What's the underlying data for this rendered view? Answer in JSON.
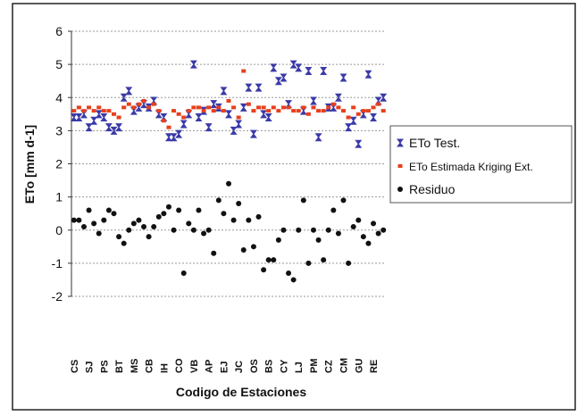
{
  "chart_data": {
    "type": "scatter",
    "x_label": "Codigo de Estaciones",
    "y_label": "ETo [mm d-1]",
    "categories": [
      "CS",
      null,
      null,
      "SJ",
      null,
      null,
      "PS",
      null,
      null,
      "BT",
      null,
      null,
      "MS",
      null,
      null,
      "CB",
      null,
      null,
      "IH",
      null,
      null,
      "CO",
      null,
      null,
      "VB",
      null,
      null,
      "AP",
      null,
      null,
      "EJ",
      null,
      null,
      "JC",
      null,
      null,
      "OS",
      null,
      null,
      "BS",
      null,
      null,
      "CY",
      null,
      null,
      "LJ",
      null,
      null,
      "PM",
      null,
      null,
      "CZ",
      null,
      null,
      "CM",
      null,
      null,
      "GU",
      null,
      null,
      "RE",
      null,
      null
    ],
    "series": [
      {
        "name": "ETo Test.",
        "color": "#3a3aa8",
        "marker": "hourglass",
        "values": [
          3.4,
          3.4,
          3.5,
          3.1,
          3.3,
          3.5,
          3.4,
          3.1,
          3.0,
          3.1,
          4.0,
          4.2,
          3.6,
          3.7,
          3.8,
          3.7,
          3.9,
          3.5,
          3.4,
          2.8,
          2.8,
          2.9,
          3.2,
          3.5,
          5.0,
          3.4,
          3.6,
          3.1,
          3.8,
          3.7,
          4.2,
          3.5,
          3.0,
          3.2,
          3.7,
          4.3,
          2.9,
          4.3,
          3.5,
          3.4,
          4.9,
          4.5,
          4.6,
          3.8,
          5.0,
          4.9,
          3.6,
          4.8,
          3.9,
          2.8,
          4.8,
          3.7,
          3.7,
          4.0,
          4.6,
          3.1,
          3.3,
          2.6,
          3.5,
          4.7,
          3.4,
          3.9,
          4.0
        ]
      },
      {
        "name": "ETo Estimada Kriging Ext.",
        "color": "#e8401c",
        "marker": "square",
        "values": [
          3.6,
          3.7,
          3.6,
          3.7,
          3.6,
          3.7,
          3.6,
          3.6,
          3.5,
          3.4,
          3.7,
          3.8,
          3.7,
          3.8,
          3.9,
          3.7,
          3.8,
          3.6,
          3.3,
          3.1,
          3.6,
          3.5,
          3.4,
          3.6,
          3.7,
          3.7,
          3.6,
          3.7,
          3.6,
          3.7,
          3.6,
          3.9,
          3.7,
          3.4,
          4.8,
          3.8,
          3.6,
          3.7,
          3.7,
          3.6,
          3.7,
          3.6,
          3.7,
          3.7,
          3.6,
          3.6,
          3.7,
          3.5,
          3.7,
          3.6,
          3.6,
          3.7,
          3.8,
          3.7,
          3.6,
          3.4,
          3.7,
          3.5,
          3.6,
          3.6,
          3.7,
          3.8,
          3.6
        ]
      },
      {
        "name": "Residuo",
        "color": "#111111",
        "marker": "circle",
        "values": [
          0.3,
          0.3,
          0.1,
          0.6,
          0.2,
          -0.1,
          0.3,
          0.6,
          0.5,
          -0.2,
          -0.4,
          0.0,
          0.2,
          0.3,
          0.1,
          -0.2,
          0.1,
          0.4,
          0.5,
          0.7,
          0.0,
          0.6,
          -1.3,
          0.2,
          0.0,
          0.6,
          -0.1,
          0.0,
          -0.7,
          0.9,
          0.5,
          1.4,
          0.3,
          0.8,
          -0.6,
          0.3,
          -0.5,
          0.4,
          -1.2,
          -0.9,
          -0.9,
          -0.3,
          0.0,
          -1.3,
          -1.5,
          0.0,
          0.9,
          -1.0,
          0.0,
          -0.3,
          -0.9,
          0.0,
          0.6,
          -0.1,
          0.9,
          -1.0,
          0.1,
          0.3,
          -0.2,
          -0.4,
          0.2,
          -0.1,
          0.0
        ]
      }
    ],
    "ylim": [
      -2,
      6
    ],
    "yticks": [
      -2,
      -1,
      0,
      1,
      2,
      3,
      4,
      5,
      6
    ],
    "grid": true,
    "legend": "right"
  }
}
